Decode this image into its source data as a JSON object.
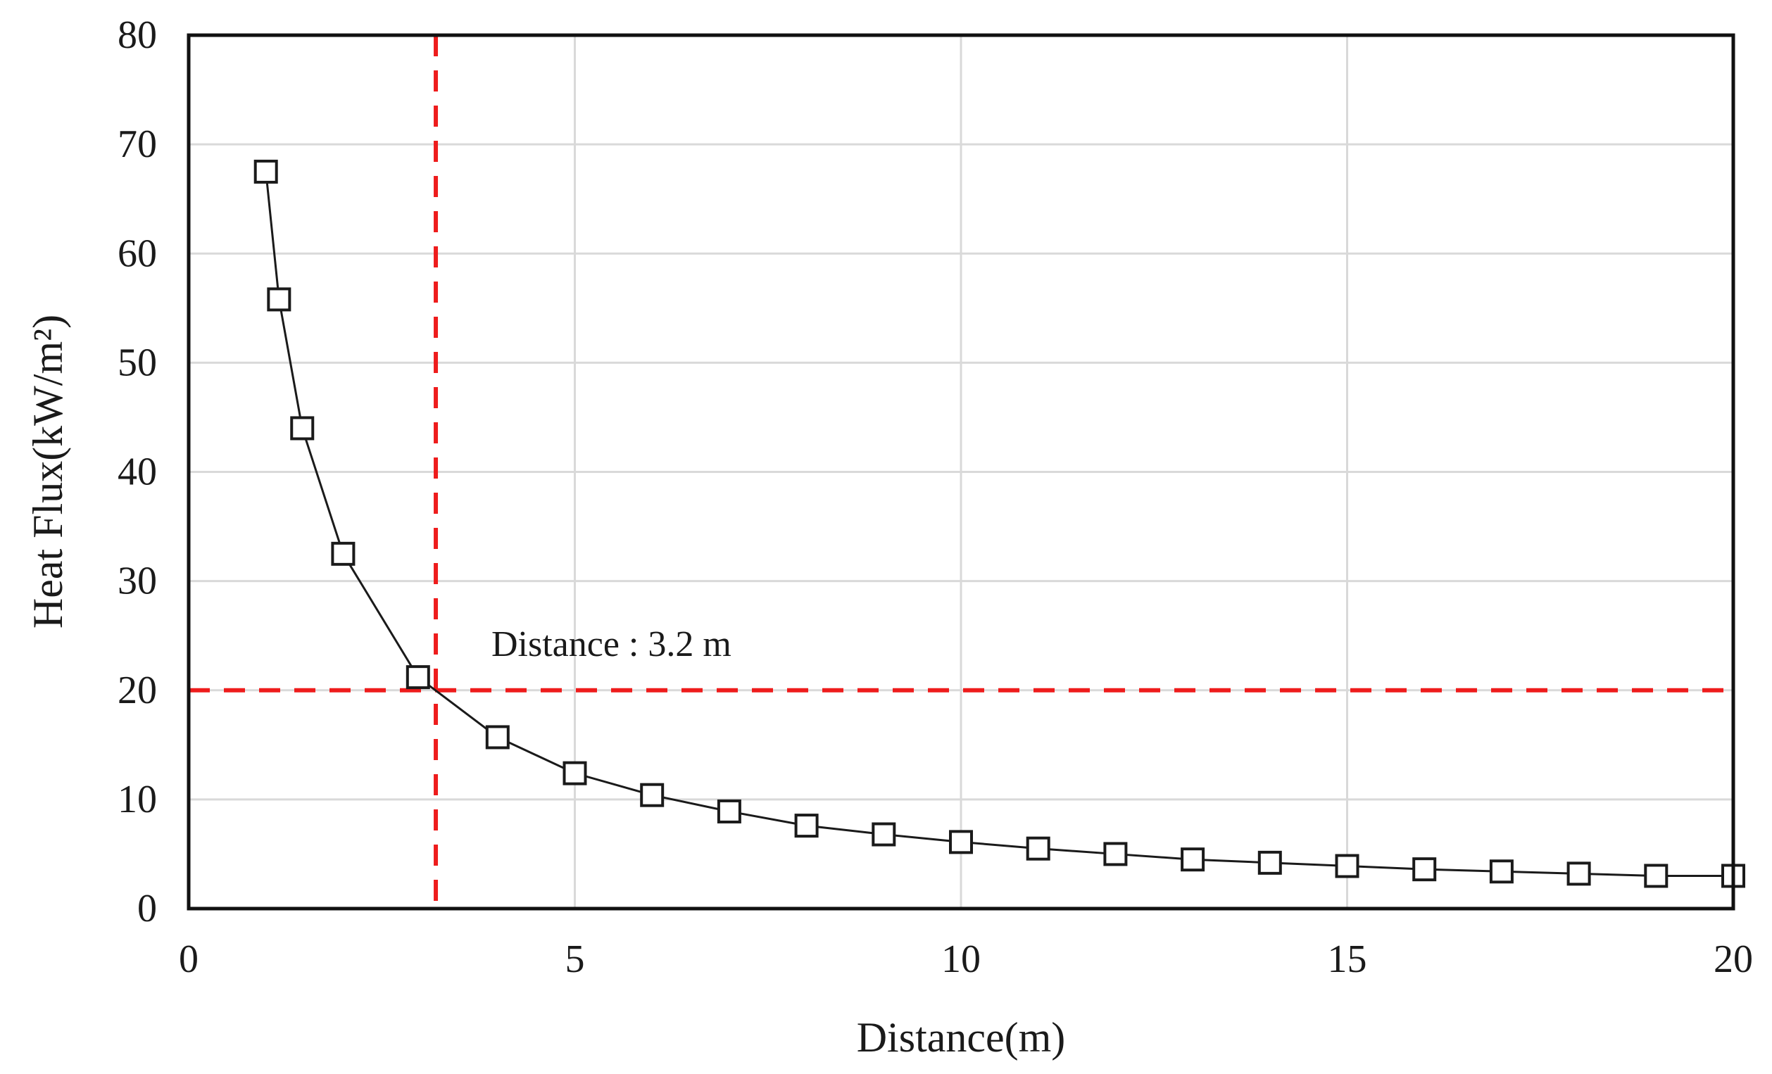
{
  "chart_data": {
    "type": "line",
    "xlabel": "Distance(m)",
    "ylabel": "Heat Flux(kW/m²)",
    "xlim": [
      0,
      20
    ],
    "ylim": [
      0,
      80
    ],
    "xticks": [
      0,
      5,
      10,
      15,
      20
    ],
    "yticks": [
      0,
      10,
      20,
      30,
      40,
      50,
      60,
      70,
      80
    ],
    "grid": true,
    "series": [
      {
        "marker": "open-square",
        "color": "#1a1a1a",
        "x": [
          1.0,
          1.17,
          1.47,
          2.0,
          2.97,
          4.0,
          5.0,
          6.0,
          7.0,
          8.0,
          9.0,
          10.0,
          11.0,
          12.0,
          13.0,
          14.0,
          15.0,
          16.0,
          17.0,
          18.0,
          19.0,
          20.0
        ],
        "y": [
          67.5,
          55.8,
          44.0,
          32.5,
          21.2,
          15.7,
          12.4,
          10.4,
          8.9,
          7.6,
          6.8,
          6.1,
          5.5,
          5.0,
          4.5,
          4.2,
          3.9,
          3.6,
          3.4,
          3.2,
          3.0,
          3.0
        ]
      }
    ],
    "reference_lines": [
      {
        "orientation": "vertical",
        "value": 3.2,
        "color": "#ee1c1c",
        "style": "dashed"
      },
      {
        "orientation": "horizontal",
        "value": 20,
        "color": "#ee1c1c",
        "style": "dashed"
      }
    ],
    "annotations": [
      {
        "text": "Distance  : 3.2 m",
        "x": 3.2,
        "y": 20
      }
    ]
  }
}
